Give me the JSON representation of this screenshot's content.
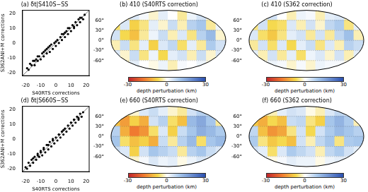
{
  "chart_data": [
    {
      "type": "scatter",
      "title": "(a) δt|S410S−SS",
      "x_label": "S40RTS corrections",
      "y_label": "S362ANI+M corrections",
      "color": "#000000",
      "x": [
        -19,
        -18,
        -17,
        -16,
        -15,
        -14,
        -13,
        -12,
        -11,
        -10,
        -9,
        -8,
        -7,
        -6,
        -5,
        -4,
        -3,
        -2,
        -1,
        0,
        1,
        2,
        3,
        4,
        5,
        6,
        7,
        8,
        9,
        10,
        11,
        12,
        13,
        14,
        15,
        16,
        17,
        18,
        19,
        -12,
        -8,
        -4,
        4,
        8,
        12,
        -14,
        16,
        0,
        -6,
        6
      ],
      "values": [
        -17,
        -18,
        -14,
        -15,
        -12,
        -15,
        -11,
        -12,
        -9,
        -11,
        -7,
        -9,
        -5,
        -7,
        -3,
        -6,
        -1,
        -4,
        0,
        -2,
        2,
        0,
        4,
        2,
        6,
        4,
        8,
        6,
        10,
        8,
        12,
        10,
        14,
        12,
        16,
        14,
        17,
        16,
        19,
        -9,
        -6,
        -2,
        6,
        10,
        11,
        -12,
        17,
        1,
        -4,
        7
      ],
      "xlim": [
        -22,
        22
      ],
      "ylim": [
        -22,
        22
      ],
      "xticks": [
        -20,
        -10,
        0,
        10,
        20
      ],
      "yticks": [
        -20,
        -10,
        0,
        10,
        20
      ]
    },
    {
      "type": "heatmap",
      "title": "(b) 410 (S40RTS correction)",
      "x": [
        -165,
        -135,
        -105,
        -75,
        -45,
        -15,
        15,
        45,
        75,
        105,
        135,
        165
      ],
      "y": [
        75,
        45,
        15,
        -15,
        -45,
        -75
      ],
      "values": [
        [
          2,
          -3,
          4,
          1,
          -2,
          3,
          0,
          -4,
          2,
          5,
          -1,
          3
        ],
        [
          -6,
          4,
          -8,
          -5,
          3,
          -2,
          6,
          -3,
          8,
          10,
          -4,
          2
        ],
        [
          5,
          -7,
          -10,
          -4,
          2,
          6,
          -3,
          4,
          -5,
          8,
          12,
          -2
        ],
        [
          -3,
          6,
          -5,
          3,
          -8,
          4,
          7,
          -6,
          3,
          -4,
          9,
          5
        ],
        [
          4,
          -2,
          6,
          -5,
          2,
          -7,
          3,
          5,
          -3,
          6,
          -2,
          4
        ],
        [
          1,
          -2,
          3,
          0,
          -1,
          2,
          -3,
          1,
          0,
          2,
          -1,
          1
        ]
      ],
      "xlim": [
        -180,
        180
      ],
      "ylim": [
        -90,
        90
      ],
      "tick_labels": "y",
      "yticks": [
        {
          "value": 60,
          "label": "60°"
        },
        {
          "value": 30,
          "label": "30°"
        },
        {
          "value": 0,
          "label": "0°"
        },
        {
          "value": -30,
          "label": "-30°"
        },
        {
          "value": -60,
          "label": "-60°"
        }
      ],
      "colorbar": {
        "label": "depth perturbation (km)",
        "range": [
          -30,
          30
        ],
        "ticks": [
          -30,
          0,
          30
        ]
      }
    },
    {
      "type": "heatmap",
      "title": "(c) 410 (S362 correction)",
      "x": [
        -165,
        -135,
        -105,
        -75,
        -45,
        -15,
        15,
        45,
        75,
        105,
        135,
        165
      ],
      "y": [
        75,
        45,
        15,
        -15,
        -45,
        -75
      ],
      "values": [
        [
          3,
          -2,
          5,
          0,
          -3,
          2,
          1,
          -3,
          3,
          4,
          -2,
          2
        ],
        [
          -5,
          5,
          -7,
          -6,
          4,
          -3,
          5,
          -2,
          7,
          9,
          -5,
          3
        ],
        [
          4,
          -6,
          -9,
          -5,
          3,
          5,
          -4,
          5,
          -4,
          7,
          11,
          -3
        ],
        [
          -4,
          5,
          -6,
          4,
          -7,
          3,
          6,
          -5,
          4,
          -3,
          8,
          6
        ],
        [
          3,
          -3,
          5,
          -4,
          3,
          -6,
          2,
          4,
          -2,
          5,
          -3,
          3
        ],
        [
          1,
          -1,
          2,
          1,
          -2,
          1,
          -2,
          2,
          1,
          1,
          -1,
          0
        ]
      ],
      "xlim": [
        -180,
        180
      ],
      "ylim": [
        -90,
        90
      ],
      "tick_labels": "y",
      "yticks": [
        {
          "value": 60,
          "label": "60°"
        },
        {
          "value": 30,
          "label": "30°"
        },
        {
          "value": 0,
          "label": "0°"
        },
        {
          "value": -30,
          "label": "-30°"
        },
        {
          "value": -60,
          "label": "-60°"
        }
      ],
      "colorbar": {
        "label": "depth perturbation (km)",
        "range": [
          -30,
          30
        ],
        "ticks": [
          -30,
          0,
          30
        ]
      }
    },
    {
      "type": "scatter",
      "title": "(d) δt|S660S−SS",
      "x_label": "S40RTS corrections",
      "y_label": "S362ANI+M corrections",
      "color": "#000000",
      "x": [
        -20,
        -19,
        -18,
        -17,
        -16,
        -15,
        -14,
        -13,
        -12,
        -11,
        -10,
        -9,
        -8,
        -7,
        -6,
        -5,
        -4,
        -3,
        -2,
        -1,
        0,
        1,
        2,
        3,
        4,
        5,
        6,
        7,
        8,
        9,
        10,
        11,
        12,
        13,
        14,
        15,
        16,
        17,
        18,
        -15,
        -10,
        -5,
        5,
        10,
        15,
        -12,
        12,
        -2,
        2,
        -8
      ],
      "values": [
        -19,
        -20,
        -16,
        -18,
        -14,
        -16,
        -12,
        -14,
        -10,
        -12,
        -8,
        -11,
        -6,
        -9,
        -4,
        -7,
        -2,
        -5,
        0,
        -3,
        1,
        -1,
        3,
        1,
        5,
        3,
        7,
        5,
        9,
        7,
        11,
        9,
        13,
        11,
        15,
        13,
        17,
        15,
        18,
        -13,
        -9,
        -4,
        6,
        11,
        14,
        -11,
        13,
        -1,
        3,
        -7
      ],
      "xlim": [
        -22,
        22
      ],
      "ylim": [
        -22,
        22
      ],
      "xticks": [
        -20,
        -10,
        0,
        10,
        20
      ],
      "yticks": [
        -20,
        -10,
        0,
        10,
        20
      ]
    },
    {
      "type": "heatmap",
      "title": "(e) 660 (S40RTS correction)",
      "x": [
        -165,
        -135,
        -105,
        -75,
        -45,
        -15,
        15,
        45,
        75,
        105,
        135,
        165
      ],
      "y": [
        75,
        45,
        15,
        -15,
        -45,
        -75
      ],
      "values": [
        [
          -3,
          -5,
          -2,
          4,
          6,
          3,
          -2,
          -4,
          5,
          8,
          6,
          2
        ],
        [
          -10,
          -14,
          -8,
          -12,
          5,
          8,
          -6,
          -10,
          12,
          15,
          10,
          -4
        ],
        [
          8,
          -12,
          -18,
          -15,
          -6,
          4,
          -8,
          6,
          10,
          14,
          12,
          9
        ],
        [
          10,
          -6,
          -10,
          -8,
          -12,
          6,
          -4,
          8,
          12,
          -6,
          10,
          12
        ],
        [
          6,
          4,
          -8,
          5,
          10,
          8,
          6,
          -4,
          8,
          10,
          6,
          4
        ],
        [
          2,
          3,
          -2,
          1,
          4,
          2,
          3,
          -1,
          2,
          4,
          2,
          1
        ]
      ],
      "xlim": [
        -180,
        180
      ],
      "ylim": [
        -90,
        90
      ],
      "tick_labels": "y",
      "yticks": [
        {
          "value": 60,
          "label": "60°"
        },
        {
          "value": 30,
          "label": "30°"
        },
        {
          "value": 0,
          "label": "0°"
        },
        {
          "value": -30,
          "label": "-30°"
        },
        {
          "value": -60,
          "label": "-60°"
        }
      ],
      "colorbar": {
        "label": "depth perturbation (km)",
        "range": [
          -30,
          30
        ],
        "ticks": [
          -30,
          0,
          30
        ]
      }
    },
    {
      "type": "heatmap",
      "title": "(f) 660 (S362 correction)",
      "x": [
        -165,
        -135,
        -105,
        -75,
        -45,
        -15,
        15,
        45,
        75,
        105,
        135,
        165
      ],
      "y": [
        75,
        45,
        15,
        -15,
        -45,
        -75
      ],
      "values": [
        [
          -2,
          -4,
          -3,
          3,
          5,
          4,
          -1,
          -3,
          4,
          7,
          5,
          3
        ],
        [
          -9,
          -12,
          -7,
          -10,
          6,
          7,
          -5,
          -8,
          10,
          13,
          9,
          -3
        ],
        [
          7,
          -10,
          -15,
          -13,
          -5,
          5,
          -7,
          5,
          9,
          12,
          10,
          8
        ],
        [
          9,
          -5,
          -9,
          -7,
          -10,
          5,
          -3,
          7,
          10,
          -5,
          9,
          10
        ],
        [
          5,
          3,
          -6,
          4,
          9,
          7,
          5,
          -3,
          7,
          9,
          5,
          3
        ],
        [
          2,
          2,
          -1,
          1,
          3,
          2,
          2,
          -1,
          2,
          3,
          2,
          1
        ]
      ],
      "xlim": [
        -180,
        180
      ],
      "ylim": [
        -90,
        90
      ],
      "tick_labels": "y",
      "yticks": [
        {
          "value": 60,
          "label": "60°"
        },
        {
          "value": 30,
          "label": "30°"
        },
        {
          "value": 0,
          "label": "0°"
        },
        {
          "value": -30,
          "label": "-30°"
        },
        {
          "value": -60,
          "label": "-60°"
        }
      ],
      "colorbar": {
        "label": "depth perturbation (km)",
        "range": [
          -30,
          30
        ],
        "ticks": [
          -30,
          0,
          30
        ]
      }
    }
  ]
}
